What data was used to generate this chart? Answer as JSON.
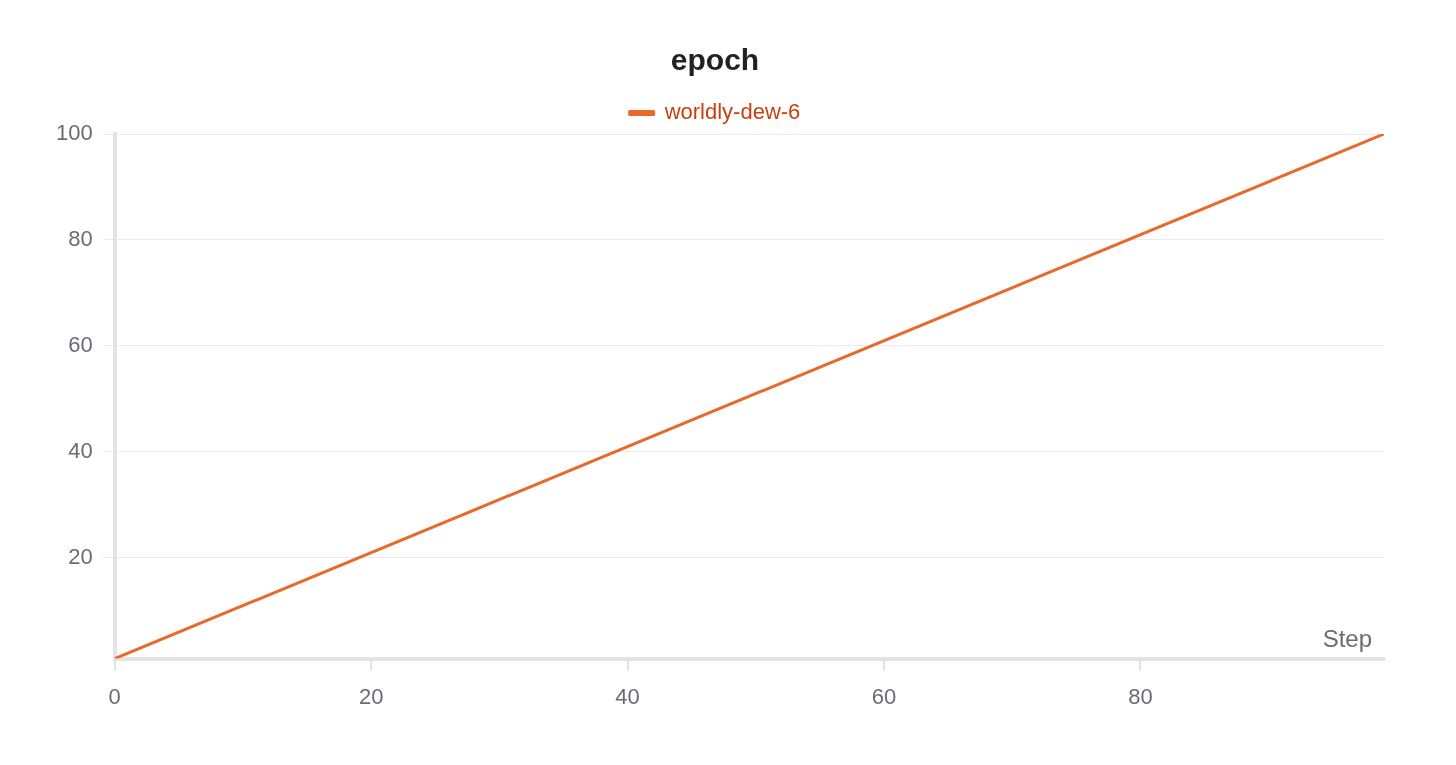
{
  "chart_data": {
    "type": "line",
    "title": "epoch",
    "xlabel": "Step",
    "x": [
      0,
      99
    ],
    "series": [
      {
        "name": "worldly-dew-6",
        "color": "#e8692a",
        "values": [
          1,
          100
        ]
      }
    ],
    "xlim": [
      0,
      99
    ],
    "xticks": [
      0,
      20,
      40,
      60,
      80
    ],
    "ylim": [
      1,
      100
    ],
    "yticks": [
      20,
      40,
      60,
      80,
      100
    ],
    "grid": "y",
    "legend": "top",
    "marker": "none",
    "line_style": "solid"
  }
}
